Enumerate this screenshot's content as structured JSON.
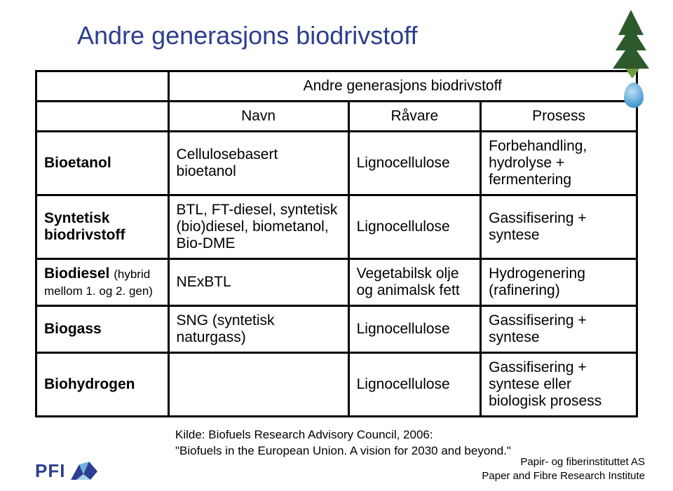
{
  "title": "Andre generasjons biodrivstoff",
  "table": {
    "super_header": "Andre generasjons biodrivstoff",
    "cols": {
      "name": "Navn",
      "raw": "Råvare",
      "process": "Prosess"
    },
    "rows": [
      {
        "cat_html": "<span class='bold'>Bioetanol</span>",
        "name": "Cellulosebasert bioetanol",
        "raw": "Lignocellulose",
        "raw_red": true,
        "proc": "Forbehandling, hydrolyse + fermentering"
      },
      {
        "cat_html": "<span class='bold'>Syntetisk biodrivstoff</span>",
        "name": "BTL, FT-diesel, syntetisk (bio)diesel, biometanol, Bio-DME",
        "raw": "Lignocellulose",
        "raw_red": true,
        "proc": "Gassifisering + syntese"
      },
      {
        "cat_html": "<span class='bold'>Biodiesel</span> <span class='small-note'>(hybrid mellom 1. og 2. gen)</span>",
        "name": "NExBTL",
        "raw": "Vegetabilsk olje og animalsk fett",
        "raw_red": false,
        "proc": "Hydrogenering (rafinering)"
      },
      {
        "cat_html": "<span class='bold'>Biogass</span>",
        "name": "SNG (syntetisk naturgass)",
        "raw": "Lignocellulose",
        "raw_red": true,
        "proc": "Gassifisering + syntese"
      },
      {
        "cat_html": "<span class='bold'>Biohydrogen</span>",
        "name": "",
        "raw": "Lignocellulose",
        "raw_red": true,
        "proc": "Gassifisering + syntese eller biologisk prosess"
      }
    ]
  },
  "source": {
    "line1": "Kilde: Biofuels Research Advisory Council, 2006:",
    "line2": "\"Biofuels in the European Union. A vision for 2030 and beyond.\""
  },
  "footer": {
    "logo_text": "PFI",
    "org_no": "Papir- og fiberinstituttet AS",
    "org_en": "Paper and Fibre Research Institute"
  },
  "colors": {
    "title": "#2c3e8f",
    "red": "#c00000",
    "border": "#000000",
    "logo": "#2c3e8f"
  }
}
